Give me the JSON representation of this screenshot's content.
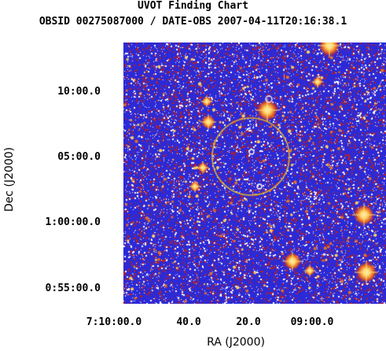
{
  "chart_data": {
    "type": "image",
    "title": "UVOT Finding Chart",
    "subtitle": "OBSID 00275087000 / DATE-OBS 2007-04-11T20:16:38.1",
    "xlabel": "RA (J2000)",
    "ylabel": "Dec (J2000)",
    "x_ticks": [
      "7:10:00.0",
      "40.0",
      "20.0",
      "09:00.0"
    ],
    "y_ticks": [
      "10:00.0",
      "05:00.0",
      "1:00:00.0",
      "0:55:00.0"
    ],
    "colors": {
      "background_blue": "#2a2ad8",
      "noise_red": "#b0202a",
      "star_white": "#ffffff",
      "circle_gold": "#e0b030"
    }
  }
}
